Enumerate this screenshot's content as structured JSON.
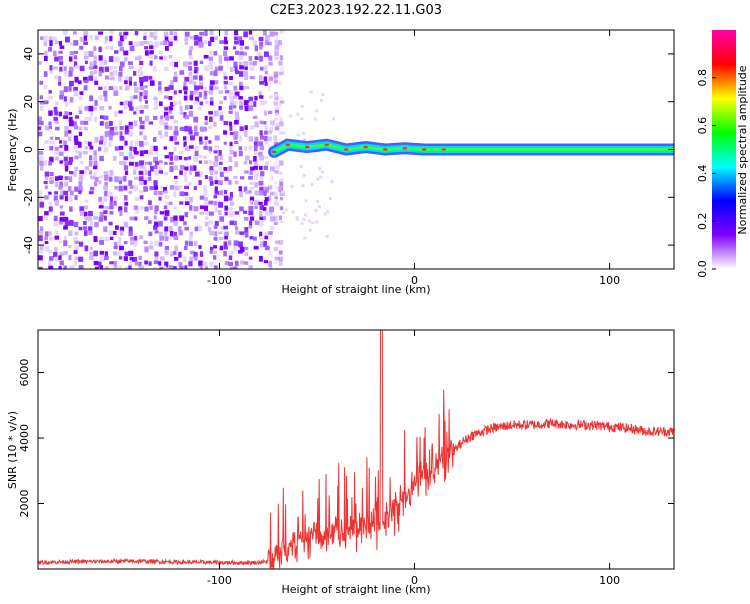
{
  "title": "C2E3.2023.192.22.11.G03",
  "chart_data": [
    {
      "type": "heatmap",
      "xlabel": "Height of straight line (km)",
      "ylabel": "Frequency (Hz)",
      "xlim": [
        -193,
        133
      ],
      "ylim": [
        -50,
        50
      ],
      "xticks": [
        -100,
        0,
        100
      ],
      "yticks": [
        -40,
        -20,
        0,
        20,
        40
      ],
      "grid": false,
      "noise_region_x": [
        -193,
        -72
      ],
      "signal_trace": [
        {
          "x": -72,
          "y": -1
        },
        {
          "x": -65,
          "y": 2
        },
        {
          "x": -55,
          "y": 1
        },
        {
          "x": -45,
          "y": 2
        },
        {
          "x": -35,
          "y": 0
        },
        {
          "x": -25,
          "y": 1
        },
        {
          "x": -15,
          "y": 0
        },
        {
          "x": -5,
          "y": 0.5
        },
        {
          "x": 5,
          "y": 0
        },
        {
          "x": 15,
          "y": 0
        },
        {
          "x": 133,
          "y": 0
        }
      ],
      "colorbar": {
        "label": "Normalized spectral amplitude",
        "range": [
          0.0,
          1.0
        ],
        "ticks": [
          "0.0",
          "0.2",
          "0.4",
          "0.6",
          "0.8"
        ],
        "colors": [
          "#ff00aa",
          "#ff0000",
          "#ffff00",
          "#00ff00",
          "#00ffff",
          "#0000ff",
          "#8000ff",
          "#ffffff"
        ]
      }
    },
    {
      "type": "line",
      "xlabel": "Height of straight line (km)",
      "ylabel": "SNR (10 * v/v)",
      "xlim": [
        -193,
        133
      ],
      "ylim": [
        0,
        7300
      ],
      "xticks": [
        -100,
        0,
        100
      ],
      "yticks": [
        2000,
        4000,
        6000
      ],
      "color": "#ee3333",
      "series": [
        {
          "x": [
            -193,
            -180,
            -160,
            -140,
            -120,
            -100,
            -90,
            -80,
            -75,
            -70,
            -65,
            -60,
            -55,
            -50,
            -45,
            -40,
            -35,
            -30,
            -25,
            -20,
            -18,
            -15,
            -10,
            -5,
            0,
            5,
            10,
            15,
            20,
            25,
            30,
            40,
            50,
            60,
            70,
            80,
            90,
            100,
            110,
            120,
            133
          ],
          "y": [
            200,
            220,
            230,
            240,
            210,
            200,
            190,
            200,
            230,
            400,
            700,
            900,
            1000,
            1100,
            1000,
            1100,
            1100,
            1200,
            1300,
            1300,
            1400,
            1500,
            1800,
            2200,
            2600,
            2900,
            3100,
            3400,
            3600,
            3900,
            4100,
            4300,
            4400,
            4400,
            4450,
            4400,
            4400,
            4350,
            4300,
            4200,
            4200
          ]
        }
      ]
    }
  ]
}
